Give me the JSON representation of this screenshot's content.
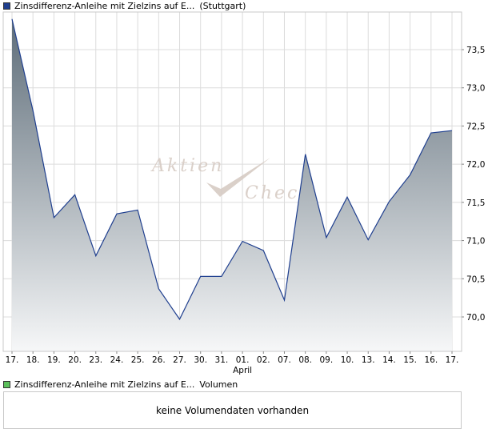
{
  "main_legend": {
    "name": "Zinsdifferenz-Anleihe mit Zielzins auf E...",
    "exchange": "(Stuttgart)",
    "swatch_color": "#1f3f8f"
  },
  "volume_legend": {
    "name": "Zinsdifferenz-Anleihe mit Zielzins auf E...",
    "suffix": "Volumen",
    "swatch_color": "#5bbf5b"
  },
  "volume_panel": {
    "message": "keine Volumendaten vorhanden"
  },
  "watermark": {
    "line1": "Aktien",
    "line2": "Check",
    "logo": "checkmark-logo"
  },
  "chart_data": {
    "type": "area",
    "title": "",
    "xlabel": "",
    "ylabel": "",
    "x": [
      "17.",
      "18.",
      "19.",
      "20.",
      "23.",
      "24.",
      "25.",
      "26.",
      "27.",
      "30.",
      "31.",
      "01.",
      "02.",
      "07.",
      "08.",
      "09.",
      "10.",
      "13.",
      "14.",
      "15.",
      "16.",
      "17."
    ],
    "month_label": {
      "text": "April",
      "at_category_index": 11
    },
    "series": [
      {
        "values": [
          73.9,
          72.7,
          71.3,
          71.6,
          70.8,
          71.35,
          71.4,
          70.37,
          69.97,
          70.53,
          70.53,
          70.99,
          70.87,
          70.22,
          72.13,
          71.04,
          71.57,
          71.01,
          71.51,
          71.86,
          72.41,
          72.44
        ],
        "line_color": "#1f3f8f",
        "fill_top_color": "#5e6d79",
        "fill_bottom_color": "#f6f7f8"
      }
    ],
    "yticks": [
      70.0,
      70.5,
      71.0,
      71.5,
      72.0,
      72.5,
      73.0,
      73.5
    ],
    "ytick_labels": [
      "70,0",
      "70,5",
      "71,0",
      "71,5",
      "72,0",
      "72,5",
      "73,0",
      "73,5"
    ],
    "ylim": [
      69.58,
      74.0
    ],
    "y_axis_position": "right",
    "grid": true,
    "grid_color": "#dcdcdc"
  }
}
